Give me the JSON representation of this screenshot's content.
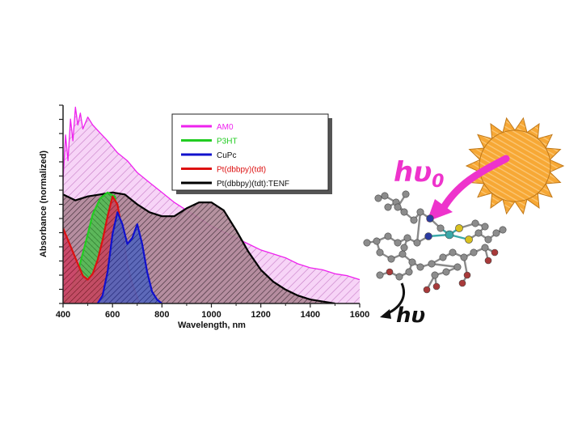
{
  "chart_data": {
    "type": "area",
    "xlabel": "Wavelength, nm",
    "ylabel": "Absorbance (normalized)",
    "xlim": [
      400,
      1600
    ],
    "ylim": [
      0,
      1
    ],
    "xticks": [
      400,
      600,
      800,
      1000,
      1200,
      1400,
      1600
    ],
    "legend_position": "top-right",
    "series": [
      {
        "name": "AM0",
        "color": "#ee22ee",
        "fill": "#f0c0f0",
        "x": [
          400,
          410,
          420,
          430,
          440,
          450,
          460,
          470,
          480,
          500,
          520,
          550,
          580,
          620,
          660,
          700,
          750,
          800,
          850,
          900,
          950,
          1000,
          1050,
          1100,
          1150,
          1200,
          1250,
          1300,
          1350,
          1400,
          1450,
          1500,
          1550,
          1600
        ],
        "y": [
          0.62,
          0.85,
          0.72,
          0.93,
          0.82,
          0.99,
          0.9,
          0.96,
          0.88,
          0.94,
          0.9,
          0.86,
          0.82,
          0.76,
          0.72,
          0.66,
          0.61,
          0.56,
          0.51,
          0.47,
          0.43,
          0.39,
          0.36,
          0.33,
          0.3,
          0.27,
          0.25,
          0.23,
          0.2,
          0.18,
          0.17,
          0.15,
          0.14,
          0.12
        ]
      },
      {
        "name": "P3HT",
        "color": "#22cc22",
        "fill": "#33aa33",
        "x": [
          400,
          430,
          460,
          490,
          520,
          550,
          580,
          610,
          630,
          650,
          670,
          690
        ],
        "y": [
          0.0,
          0.06,
          0.16,
          0.3,
          0.45,
          0.53,
          0.56,
          0.54,
          0.35,
          0.14,
          0.03,
          0.0
        ]
      },
      {
        "name": "CuPc",
        "color": "#1111cc",
        "fill": "#2233aa",
        "x": [
          540,
          560,
          580,
          600,
          620,
          640,
          660,
          680,
          700,
          720,
          740,
          760,
          780,
          800
        ],
        "y": [
          0.0,
          0.04,
          0.16,
          0.35,
          0.46,
          0.4,
          0.3,
          0.33,
          0.4,
          0.3,
          0.16,
          0.06,
          0.02,
          0.0
        ]
      },
      {
        "name": "Pt(dbbpy)(tdt)",
        "color": "#dd1111",
        "fill": "#bb1133",
        "x": [
          400,
          420,
          440,
          460,
          480,
          500,
          520,
          540,
          560,
          580,
          600,
          620,
          640,
          660,
          680,
          700,
          710
        ],
        "y": [
          0.38,
          0.32,
          0.26,
          0.2,
          0.14,
          0.12,
          0.15,
          0.22,
          0.32,
          0.44,
          0.54,
          0.5,
          0.36,
          0.2,
          0.1,
          0.03,
          0.0
        ]
      },
      {
        "name": "Pt(dbbpy)(tdt):TENF",
        "color": "#000000",
        "fill": "#885566",
        "x": [
          400,
          450,
          500,
          550,
          600,
          650,
          700,
          750,
          800,
          850,
          900,
          950,
          1000,
          1050,
          1100,
          1150,
          1200,
          1250,
          1300,
          1350,
          1400,
          1450,
          1500
        ],
        "y": [
          0.55,
          0.52,
          0.54,
          0.55,
          0.56,
          0.55,
          0.5,
          0.46,
          0.44,
          0.44,
          0.48,
          0.51,
          0.51,
          0.47,
          0.37,
          0.26,
          0.17,
          0.11,
          0.07,
          0.04,
          0.02,
          0.01,
          0.0
        ]
      }
    ]
  },
  "illustration": {
    "hv0_main": "hυ",
    "hv0_sub": "0",
    "hv": "hυ",
    "sun_color": "#f7a835",
    "arrow_color": "#ee33cc"
  }
}
